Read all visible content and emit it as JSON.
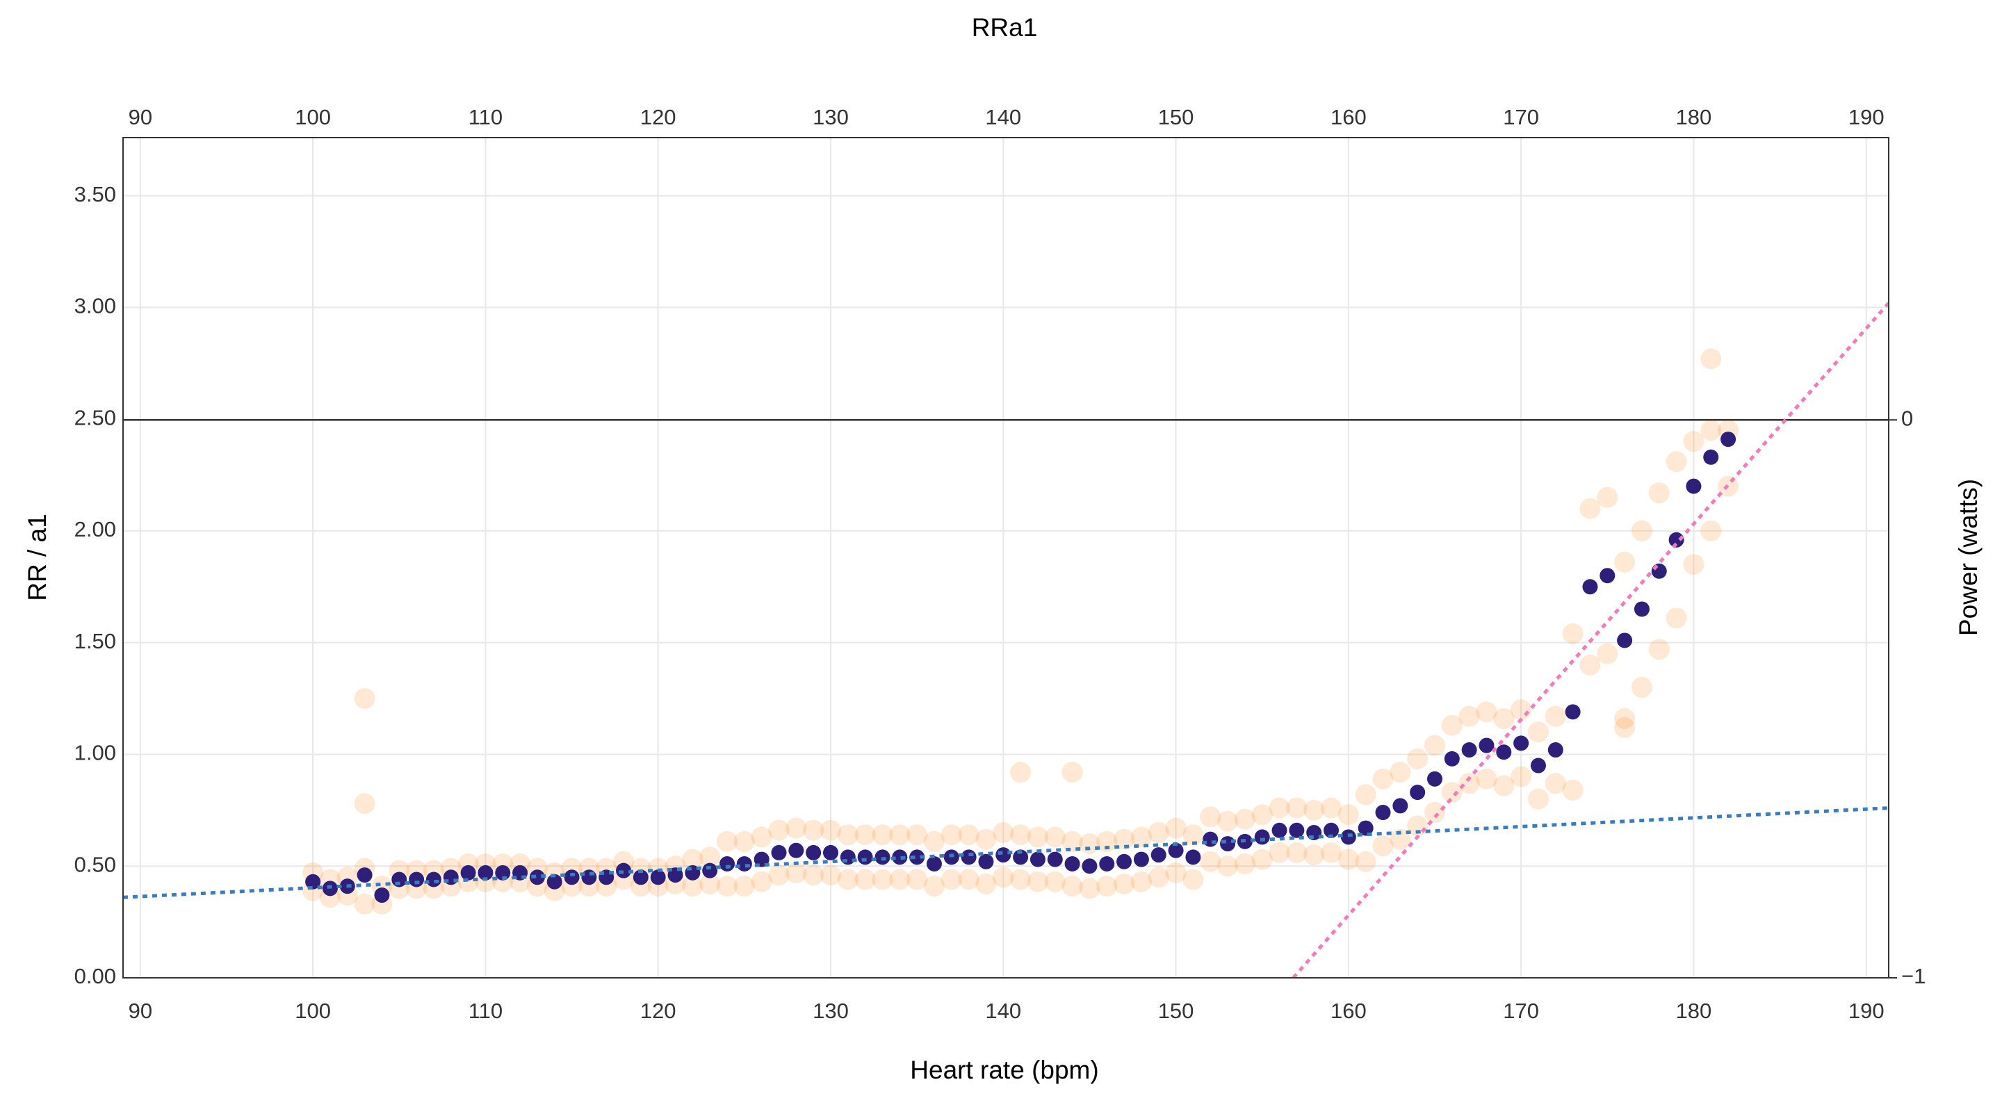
{
  "chart_data": {
    "type": "scatter",
    "title": "RRa1",
    "x_label": "Heart rate (bpm)",
    "y_label": "RR / a1",
    "y2_label": "Power (watts)",
    "xlim": [
      89,
      191.3
    ],
    "ylim": [
      0,
      3.76
    ],
    "y2lim": [
      -1,
      0.506
    ],
    "xticks": [
      90,
      100,
      110,
      120,
      130,
      140,
      150,
      160,
      170,
      180,
      190
    ],
    "yticks": [
      {
        "value": 0,
        "label": "0.00"
      },
      {
        "value": 0.5,
        "label": "0.50"
      },
      {
        "value": 1,
        "label": "1.00"
      },
      {
        "value": 1.5,
        "label": "1.50"
      },
      {
        "value": 2,
        "label": "2.00"
      },
      {
        "value": 2.5,
        "label": "2.50"
      },
      {
        "value": 3,
        "label": "3.00"
      },
      {
        "value": 3.5,
        "label": "3.50"
      }
    ],
    "y2ticks": [
      {
        "value": -1,
        "label": "−1"
      },
      0
    ],
    "grid": true,
    "series": [
      {
        "type": "scatter",
        "color": "#ff7f0e",
        "opacity": 0.18,
        "x": [
          100,
          100,
          101,
          101,
          102,
          102,
          103,
          103,
          104,
          104,
          105,
          105,
          106,
          106,
          107,
          107,
          108,
          108,
          109,
          109,
          110,
          110,
          111,
          111,
          112,
          112,
          113,
          113,
          114,
          114,
          115,
          115,
          116,
          116,
          117,
          117,
          118,
          118,
          119,
          119,
          120,
          120,
          121,
          121,
          122,
          122,
          123,
          123,
          124,
          124,
          125,
          125,
          126,
          126,
          127,
          127,
          128,
          128,
          129,
          129,
          130,
          130,
          131,
          131,
          132,
          132,
          133,
          133,
          134,
          134,
          135,
          135,
          136,
          136,
          137,
          137,
          138,
          138,
          139,
          139,
          140,
          140,
          141,
          141,
          142,
          142,
          143,
          143,
          144,
          144,
          145,
          145,
          146,
          146,
          147,
          147,
          148,
          148,
          149,
          149,
          150,
          150,
          151,
          151,
          152,
          152,
          153,
          153,
          154,
          154,
          155,
          155,
          156,
          156,
          157,
          157,
          158,
          158,
          159,
          159,
          160,
          160,
          161,
          161,
          162,
          162,
          163,
          163,
          164,
          164,
          165,
          165,
          166,
          166,
          167,
          167,
          168,
          168,
          169,
          169,
          170,
          170,
          171,
          171,
          172,
          172,
          173,
          173,
          174,
          174,
          175,
          175,
          176,
          176,
          177,
          177,
          178,
          178,
          179,
          179,
          180,
          180,
          181,
          181,
          182,
          182,
          103,
          103,
          181,
          176,
          141,
          144
        ],
        "values": [
          0.39,
          0.47,
          0.36,
          0.44,
          0.37,
          0.45,
          0.33,
          0.49,
          0.33,
          0.41,
          0.4,
          0.48,
          0.4,
          0.48,
          0.4,
          0.48,
          0.41,
          0.49,
          0.43,
          0.51,
          0.43,
          0.51,
          0.43,
          0.51,
          0.43,
          0.51,
          0.41,
          0.49,
          0.39,
          0.47,
          0.41,
          0.49,
          0.41,
          0.49,
          0.41,
          0.49,
          0.44,
          0.52,
          0.41,
          0.49,
          0.41,
          0.49,
          0.42,
          0.5,
          0.41,
          0.53,
          0.42,
          0.54,
          0.41,
          0.61,
          0.41,
          0.61,
          0.43,
          0.63,
          0.46,
          0.66,
          0.47,
          0.67,
          0.46,
          0.66,
          0.46,
          0.66,
          0.44,
          0.64,
          0.44,
          0.64,
          0.44,
          0.64,
          0.44,
          0.64,
          0.44,
          0.64,
          0.41,
          0.61,
          0.44,
          0.64,
          0.44,
          0.64,
          0.42,
          0.62,
          0.45,
          0.65,
          0.44,
          0.64,
          0.43,
          0.63,
          0.43,
          0.63,
          0.41,
          0.61,
          0.4,
          0.6,
          0.41,
          0.61,
          0.42,
          0.62,
          0.43,
          0.63,
          0.45,
          0.65,
          0.47,
          0.67,
          0.44,
          0.64,
          0.52,
          0.72,
          0.5,
          0.7,
          0.51,
          0.71,
          0.53,
          0.73,
          0.56,
          0.76,
          0.56,
          0.76,
          0.55,
          0.75,
          0.56,
          0.76,
          0.53,
          0.73,
          0.52,
          0.82,
          0.59,
          0.89,
          0.62,
          0.92,
          0.68,
          0.98,
          0.74,
          1.04,
          0.83,
          1.13,
          0.87,
          1.17,
          0.89,
          1.19,
          0.86,
          1.16,
          0.9,
          1.2,
          0.8,
          1.1,
          0.87,
          1.17,
          0.84,
          1.54,
          1.4,
          2.1,
          1.45,
          2.15,
          1.16,
          1.86,
          1.3,
          2.0,
          1.47,
          2.17,
          1.61,
          2.31,
          1.85,
          2.4,
          2.0,
          2.45,
          2.2,
          2.45,
          1.25,
          0.78,
          2.77,
          1.12,
          0.92,
          0.92
        ]
      },
      {
        "type": "scatter",
        "color": "#2e1f7a",
        "opacity": 1,
        "x": [
          100,
          101,
          102,
          103,
          104,
          105,
          106,
          107,
          108,
          109,
          110,
          111,
          112,
          113,
          114,
          115,
          116,
          117,
          118,
          119,
          120,
          121,
          122,
          123,
          124,
          125,
          126,
          127,
          128,
          129,
          130,
          131,
          132,
          133,
          134,
          135,
          136,
          137,
          138,
          139,
          140,
          141,
          142,
          143,
          144,
          145,
          146,
          147,
          148,
          149,
          150,
          151,
          152,
          153,
          154,
          155,
          156,
          157,
          158,
          159,
          160,
          161,
          162,
          163,
          164,
          165,
          166,
          167,
          168,
          169,
          170,
          171,
          172,
          173,
          174,
          175,
          176,
          177,
          178,
          179,
          180,
          181,
          182
        ],
        "values": [
          0.43,
          0.4,
          0.41,
          0.46,
          0.37,
          0.44,
          0.44,
          0.44,
          0.45,
          0.47,
          0.47,
          0.47,
          0.47,
          0.45,
          0.43,
          0.45,
          0.45,
          0.45,
          0.48,
          0.45,
          0.45,
          0.46,
          0.47,
          0.48,
          0.51,
          0.51,
          0.53,
          0.56,
          0.57,
          0.56,
          0.56,
          0.54,
          0.54,
          0.54,
          0.54,
          0.54,
          0.51,
          0.54,
          0.54,
          0.52,
          0.55,
          0.54,
          0.53,
          0.53,
          0.51,
          0.5,
          0.51,
          0.52,
          0.53,
          0.55,
          0.57,
          0.54,
          0.62,
          0.6,
          0.61,
          0.63,
          0.66,
          0.66,
          0.65,
          0.66,
          0.63,
          0.67,
          0.74,
          0.77,
          0.83,
          0.89,
          0.98,
          1.02,
          1.04,
          1.01,
          1.05,
          0.95,
          1.02,
          1.19,
          1.75,
          1.8,
          1.51,
          1.65,
          1.82,
          1.96,
          2.2,
          2.33,
          2.41
        ]
      },
      {
        "type": "line",
        "color": "#3a7dbf",
        "x": [
          89,
          191.3
        ],
        "values": [
          0.36,
          0.76
        ]
      },
      {
        "type": "line",
        "color": "#f27bbd",
        "x": [
          156.8,
          191.3
        ],
        "values": [
          0,
          3.02
        ]
      }
    ]
  }
}
